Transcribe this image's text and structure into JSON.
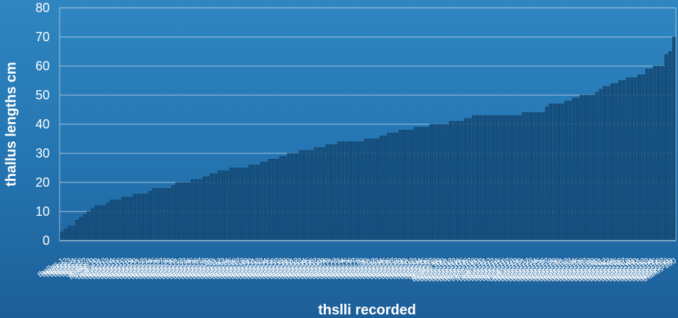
{
  "chart_data": {
    "type": "bar",
    "title": "",
    "xlabel": "thslli recorded",
    "ylabel": "thallus lengths cm",
    "ylim": [
      0,
      80
    ],
    "yticks": [
      0,
      10,
      20,
      30,
      40,
      50,
      60,
      70,
      80
    ],
    "grid": true,
    "legend": "none",
    "colors": {
      "bar": "#16507f",
      "bar_edge": "#0c3355",
      "grid": "#bcd3e6",
      "text": "#ffffff"
    },
    "values": [
      3,
      4,
      5,
      5,
      7,
      8,
      9,
      10,
      11,
      12,
      12,
      12,
      13,
      14,
      14,
      14,
      15,
      15,
      15,
      16,
      16,
      16,
      16,
      17,
      18,
      18,
      18,
      18,
      18,
      19,
      20,
      20,
      20,
      20,
      21,
      21,
      21,
      22,
      22,
      23,
      23,
      24,
      24,
      24,
      25,
      25,
      25,
      25,
      25,
      26,
      26,
      26,
      27,
      27,
      28,
      28,
      28,
      29,
      29,
      30,
      30,
      30,
      31,
      31,
      31,
      31,
      32,
      32,
      32,
      33,
      33,
      33,
      34,
      34,
      34,
      34,
      34,
      34,
      34,
      35,
      35,
      35,
      35,
      36,
      36,
      37,
      37,
      37,
      38,
      38,
      38,
      38,
      39,
      39,
      39,
      39,
      40,
      40,
      40,
      40,
      40,
      41,
      41,
      41,
      41,
      42,
      42,
      43,
      43,
      43,
      43,
      43,
      43,
      43,
      43,
      43,
      43,
      43,
      43,
      43,
      44,
      44,
      44,
      44,
      44,
      44,
      46,
      47,
      47,
      47,
      47,
      48,
      48,
      49,
      49,
      50,
      50,
      50,
      50,
      51,
      52,
      53,
      53,
      54,
      54,
      55,
      55,
      56,
      56,
      56,
      57,
      57,
      59,
      59,
      60,
      60,
      60,
      64,
      65,
      70
    ]
  }
}
